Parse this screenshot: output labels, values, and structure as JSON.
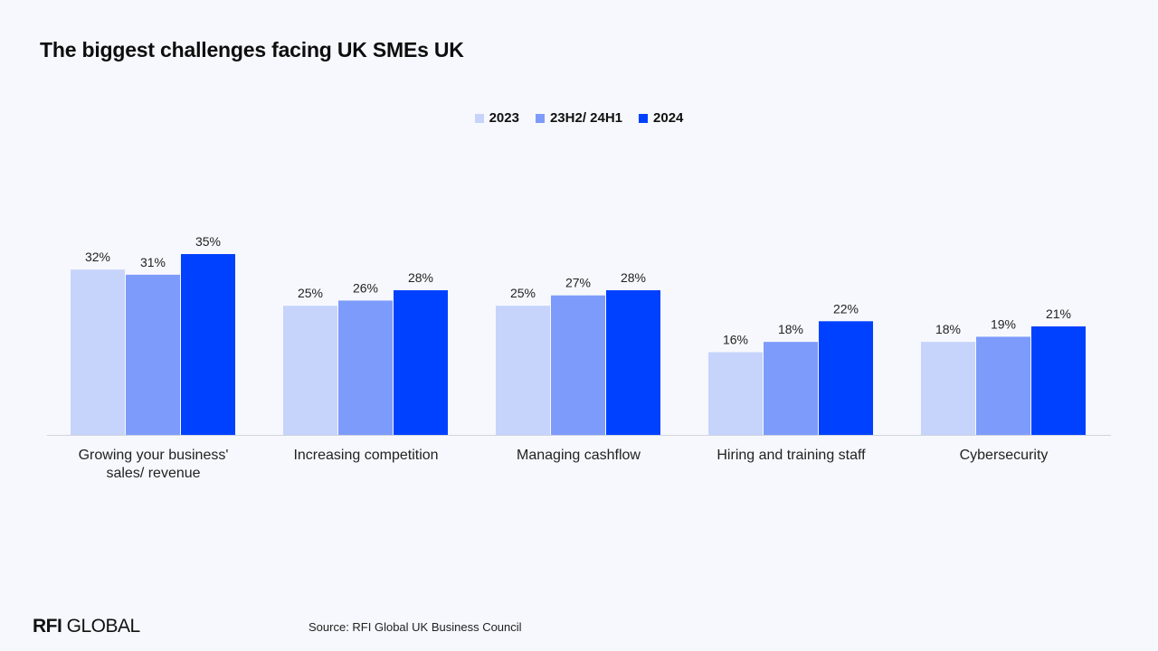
{
  "title": "The biggest challenges facing UK SMEs UK",
  "source": "Source: RFI Global UK Business Council",
  "logo": {
    "bold": "RFI",
    "rest": " GLOBAL"
  },
  "colors": {
    "s2023": "#c6d4fb",
    "s23h2": "#7d9bfb",
    "s2024": "#0041ff",
    "axis": "#d0d4e0"
  },
  "chart_data": {
    "type": "bar",
    "title": "The biggest challenges facing UK SMEs UK",
    "legend_position": "top-center",
    "grid": false,
    "categories": [
      [
        "Growing your business'",
        "sales/ revenue"
      ],
      [
        "Increasing competition"
      ],
      [
        "Managing cashflow"
      ],
      [
        "Hiring and training staff"
      ],
      [
        "Cybersecurity"
      ]
    ],
    "series": [
      {
        "name": "2023",
        "values": [
          32,
          25,
          25,
          16,
          18
        ],
        "labels": [
          "32%",
          "25%",
          "25%",
          "16%",
          "18%"
        ],
        "color": "#c6d4fb"
      },
      {
        "name": "23H2/ 24H1",
        "values": [
          31,
          26,
          27,
          18,
          19
        ],
        "labels": [
          "31%",
          "26%",
          "27%",
          "18%",
          "19%"
        ],
        "color": "#7d9bfb"
      },
      {
        "name": "2024",
        "values": [
          35,
          28,
          28,
          22,
          21
        ],
        "labels": [
          "35%",
          "28%",
          "28%",
          "22%",
          "21%"
        ],
        "color": "#0041ff"
      }
    ],
    "ylim": [
      0,
      35
    ]
  }
}
